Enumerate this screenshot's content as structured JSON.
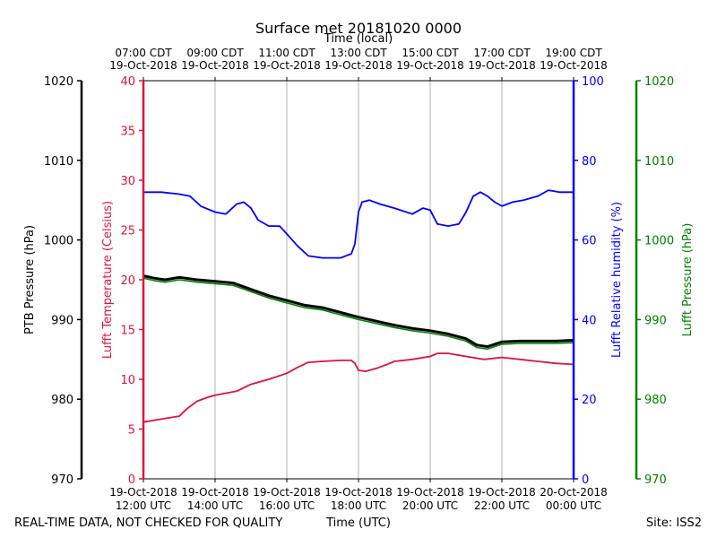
{
  "colors": {
    "temperature": "#dc143c",
    "humidity": "#0000ff",
    "ptb": "#000000",
    "lufft_pressure": "#008000",
    "grid": "#b0b0b0"
  },
  "footer": {
    "left": "REAL-TIME DATA, NOT CHECKED FOR QUALITY",
    "center": "Time (UTC)",
    "right": "Site: ISS2"
  },
  "chart_data": {
    "type": "line",
    "title": "Surface met 20181020 0000",
    "top_axis_title": "Time (local)",
    "x_range_hours": [
      12,
      24
    ],
    "bottom_ticks": [
      {
        "h": 12,
        "date": "19-Oct-2018",
        "time": "12:00 UTC"
      },
      {
        "h": 14,
        "date": "19-Oct-2018",
        "time": "14:00 UTC"
      },
      {
        "h": 16,
        "date": "19-Oct-2018",
        "time": "16:00 UTC"
      },
      {
        "h": 18,
        "date": "19-Oct-2018",
        "time": "18:00 UTC"
      },
      {
        "h": 20,
        "date": "19-Oct-2018",
        "time": "20:00 UTC"
      },
      {
        "h": 22,
        "date": "19-Oct-2018",
        "time": "22:00 UTC"
      },
      {
        "h": 24,
        "date": "20-Oct-2018",
        "time": "00:00 UTC"
      }
    ],
    "top_ticks": [
      {
        "h": 12,
        "time": "07:00 CDT",
        "date": "19-Oct-2018"
      },
      {
        "h": 14,
        "time": "09:00 CDT",
        "date": "19-Oct-2018"
      },
      {
        "h": 16,
        "time": "11:00 CDT",
        "date": "19-Oct-2018"
      },
      {
        "h": 18,
        "time": "13:00 CDT",
        "date": "19-Oct-2018"
      },
      {
        "h": 20,
        "time": "15:00 CDT",
        "date": "19-Oct-2018"
      },
      {
        "h": 22,
        "time": "17:00 CDT",
        "date": "19-Oct-2018"
      },
      {
        "h": 24,
        "time": "19:00 CDT",
        "date": "19-Oct-2018"
      }
    ],
    "axes": {
      "ptb": {
        "label": "PTB Pressure (hPa)",
        "range": [
          970,
          1020
        ],
        "ticks": [
          "970",
          "980",
          "990",
          "1000",
          "1010",
          "1020"
        ]
      },
      "temperature": {
        "label": "Lufft Temperature (Celsius)",
        "range": [
          0,
          40
        ],
        "ticks": [
          "0",
          "5",
          "10",
          "15",
          "20",
          "25",
          "30",
          "35",
          "40"
        ]
      },
      "humidity": {
        "label": "Lufft Relative humidity (%)",
        "range": [
          0,
          100
        ],
        "ticks": [
          "0",
          "20",
          "40",
          "60",
          "80",
          "100"
        ]
      },
      "lufft_pressure": {
        "label": "Lufft Pressure (hPa)",
        "range": [
          970,
          1020
        ],
        "ticks": [
          "970",
          "980",
          "990",
          "1000",
          "1010",
          "1020"
        ]
      }
    },
    "series": [
      {
        "name": "Lufft Temperature",
        "axis": "temperature",
        "x": [
          12.0,
          12.5,
          13.0,
          13.2,
          13.5,
          13.8,
          14.0,
          14.3,
          14.6,
          15.0,
          15.5,
          16.0,
          16.3,
          16.6,
          17.0,
          17.5,
          17.8,
          17.9,
          18.0,
          18.2,
          18.5,
          18.8,
          19.0,
          19.5,
          20.0,
          20.2,
          20.5,
          21.0,
          21.5,
          22.0,
          22.5,
          23.0,
          23.5,
          24.0
        ],
        "values": [
          5.7,
          6.0,
          6.3,
          7.0,
          7.8,
          8.2,
          8.4,
          8.6,
          8.8,
          9.5,
          10.0,
          10.6,
          11.2,
          11.7,
          11.8,
          11.9,
          11.9,
          11.6,
          10.9,
          10.8,
          11.1,
          11.5,
          11.8,
          12.0,
          12.3,
          12.6,
          12.6,
          12.3,
          12.0,
          12.2,
          12.0,
          11.8,
          11.6,
          11.5
        ]
      },
      {
        "name": "Lufft Relative humidity",
        "axis": "humidity",
        "x": [
          12.0,
          12.5,
          13.0,
          13.3,
          13.6,
          14.0,
          14.3,
          14.6,
          14.8,
          15.0,
          15.2,
          15.5,
          15.8,
          16.0,
          16.3,
          16.6,
          17.0,
          17.5,
          17.8,
          17.9,
          18.0,
          18.1,
          18.3,
          18.6,
          19.0,
          19.5,
          19.8,
          20.0,
          20.2,
          20.5,
          20.8,
          21.0,
          21.2,
          21.4,
          21.6,
          21.8,
          22.0,
          22.3,
          22.6,
          23.0,
          23.3,
          23.6,
          24.0
        ],
        "values": [
          72.0,
          72.0,
          71.5,
          71.0,
          68.5,
          67.0,
          66.5,
          69.0,
          69.5,
          68.0,
          65.0,
          63.5,
          63.5,
          61.5,
          58.5,
          56.0,
          55.5,
          55.5,
          56.5,
          59.0,
          67.0,
          69.5,
          70.0,
          69.0,
          68.0,
          66.5,
          68.0,
          67.5,
          64.0,
          63.5,
          64.0,
          67.0,
          71.0,
          72.0,
          71.0,
          69.5,
          68.5,
          69.5,
          70.0,
          71.0,
          72.5,
          72.0,
          72.0
        ]
      },
      {
        "name": "PTB Pressure",
        "axis": "ptb",
        "x": [
          12.0,
          12.3,
          12.6,
          13.0,
          13.5,
          14.0,
          14.5,
          15.0,
          15.5,
          16.0,
          16.5,
          17.0,
          17.5,
          18.0,
          18.5,
          19.0,
          19.5,
          20.0,
          20.5,
          21.0,
          21.3,
          21.6,
          22.0,
          22.5,
          23.0,
          23.5,
          24.0
        ],
        "values": [
          995.5,
          995.2,
          995.0,
          995.3,
          995.0,
          994.8,
          994.6,
          993.8,
          993.0,
          992.4,
          991.8,
          991.5,
          990.9,
          990.3,
          989.8,
          989.3,
          988.9,
          988.6,
          988.2,
          987.6,
          986.8,
          986.6,
          987.2,
          987.3,
          987.3,
          987.3,
          987.4
        ]
      },
      {
        "name": "Lufft Pressure",
        "axis": "lufft_pressure",
        "x": [
          12.0,
          12.3,
          12.6,
          13.0,
          13.5,
          14.0,
          14.5,
          15.0,
          15.5,
          16.0,
          16.5,
          17.0,
          17.5,
          18.0,
          18.5,
          19.0,
          19.5,
          20.0,
          20.5,
          21.0,
          21.3,
          21.6,
          22.0,
          22.5,
          23.0,
          23.5,
          24.0
        ],
        "values": [
          995.2,
          994.9,
          994.7,
          995.0,
          994.7,
          994.5,
          994.3,
          993.5,
          992.7,
          992.1,
          991.5,
          991.2,
          990.6,
          990.0,
          989.5,
          989.0,
          988.6,
          988.3,
          987.9,
          987.3,
          986.5,
          986.3,
          986.9,
          987.0,
          987.0,
          987.0,
          987.1
        ]
      }
    ]
  }
}
